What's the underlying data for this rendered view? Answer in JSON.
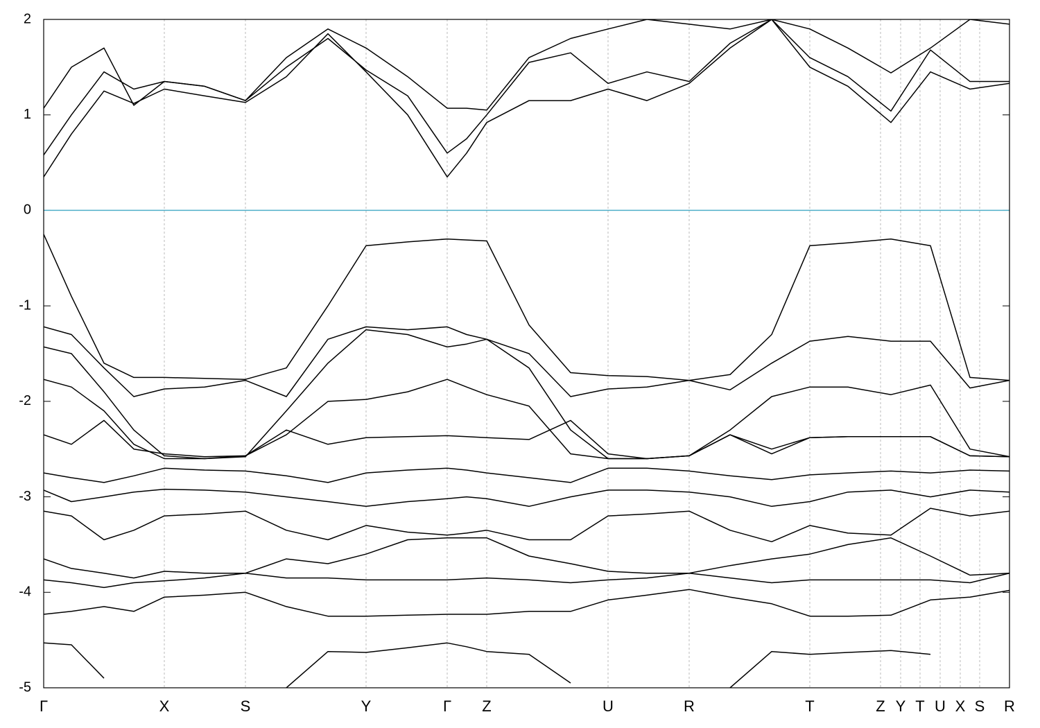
{
  "chart_data": {
    "type": "line",
    "x": [
      0,
      0.4,
      0.87,
      1.3,
      1.74,
      2.32,
      2.91,
      3.5,
      4.1,
      4.65,
      5.25,
      5.82,
      6.1,
      6.39,
      7.0,
      7.6,
      8.14,
      8.7,
      9.31,
      9.9,
      10.5,
      11.05,
      11.6,
      12.22,
      12.79,
      13.36,
      13.93
    ],
    "xlim": [
      0,
      13.93
    ],
    "xticks": [
      {
        "value": 0,
        "label": "Γ"
      },
      {
        "value": 1.74,
        "label": "X"
      },
      {
        "value": 2.91,
        "label": "S"
      },
      {
        "value": 4.65,
        "label": "Y"
      },
      {
        "value": 5.82,
        "label": "Γ"
      },
      {
        "value": 6.39,
        "label": "Z"
      },
      {
        "value": 8.14,
        "label": "U"
      },
      {
        "value": 9.31,
        "label": "R"
      },
      {
        "value": 11.05,
        "label": "T"
      },
      {
        "value": 12.07,
        "label": "Z"
      },
      {
        "value": 12.36,
        "label": "Y"
      },
      {
        "value": 12.64,
        "label": "T"
      },
      {
        "value": 12.93,
        "label": "U"
      },
      {
        "value": 13.22,
        "label": "X"
      },
      {
        "value": 13.5,
        "label": "S"
      },
      {
        "value": 13.93,
        "label": "R"
      }
    ],
    "ylim": [
      -5,
      2
    ],
    "yticks": [
      -5,
      -4,
      -3,
      -2,
      -1,
      0,
      1,
      2
    ],
    "grid": true,
    "reference_line": {
      "value": 0,
      "color": "#4eaec8"
    },
    "series": [
      {
        "color": "#000000",
        "values": [
          1.07,
          1.5,
          1.7,
          1.1,
          1.35,
          1.3,
          1.15,
          1.6,
          1.9,
          1.7,
          1.4,
          1.07,
          1.07,
          1.05,
          1.6,
          1.8,
          1.9,
          2.0,
          1.95,
          1.9,
          2.0,
          1.9,
          1.7,
          1.44,
          1.7,
          2.0,
          1.95
        ]
      },
      {
        "color": "#000000",
        "values": [
          0.58,
          1.0,
          1.45,
          1.27,
          1.35,
          1.3,
          1.15,
          1.5,
          1.8,
          1.47,
          1.2,
          0.6,
          0.75,
          1.0,
          1.55,
          1.65,
          1.33,
          1.45,
          1.35,
          1.75,
          2.0,
          1.6,
          1.4,
          1.04,
          1.68,
          1.35,
          1.35
        ]
      },
      {
        "color": "#000000",
        "values": [
          0.35,
          0.8,
          1.25,
          1.12,
          1.27,
          1.2,
          1.13,
          1.4,
          1.85,
          1.45,
          1.0,
          0.35,
          0.6,
          0.92,
          1.15,
          1.15,
          1.27,
          1.15,
          1.33,
          1.7,
          2.0,
          1.5,
          1.3,
          0.92,
          1.45,
          1.27,
          1.33
        ]
      },
      {
        "color": "#000000",
        "values": [
          -0.25,
          -0.9,
          -1.6,
          -1.75,
          -1.75,
          -1.76,
          -1.77,
          -1.65,
          -1.0,
          -0.37,
          -0.33,
          -0.3,
          -0.31,
          -0.32,
          -1.2,
          -1.7,
          -1.73,
          -1.74,
          -1.78,
          -1.72,
          -1.3,
          -0.37,
          -0.34,
          -0.3,
          -0.37,
          -1.75,
          -1.78
        ]
      },
      {
        "color": "#000000",
        "values": [
          -1.22,
          -1.3,
          -1.65,
          -1.95,
          -1.87,
          -1.85,
          -1.78,
          -1.95,
          -1.35,
          -1.22,
          -1.25,
          -1.22,
          -1.3,
          -1.35,
          -1.5,
          -1.95,
          -1.87,
          -1.85,
          -1.78,
          -1.88,
          -1.6,
          -1.37,
          -1.32,
          -1.37,
          -1.37,
          -1.86,
          -1.78
        ]
      },
      {
        "color": "#000000",
        "values": [
          -1.43,
          -1.5,
          -1.9,
          -2.3,
          -2.57,
          -2.6,
          -2.58,
          -2.1,
          -1.6,
          -1.25,
          -1.3,
          -1.43,
          -1.4,
          -1.35,
          -1.65,
          -2.3,
          -2.6,
          -2.6,
          -2.57,
          -2.3,
          -1.95,
          -1.85,
          -1.85,
          -1.93,
          -1.83,
          -2.5,
          -2.58
        ]
      },
      {
        "color": "#000000",
        "values": [
          -1.77,
          -1.85,
          -2.1,
          -2.45,
          -2.6,
          -2.6,
          -2.57,
          -2.35,
          -2.0,
          -1.98,
          -1.9,
          -1.77,
          -1.85,
          -1.93,
          -2.05,
          -2.55,
          -2.6,
          -2.6,
          -2.57,
          -2.35,
          -2.5,
          -2.38,
          -2.37,
          -2.37,
          -2.37,
          -2.57,
          -2.58
        ]
      },
      {
        "color": "#000000",
        "values": [
          -2.35,
          -2.45,
          -2.2,
          -2.5,
          -2.55,
          -2.58,
          -2.57,
          -2.3,
          -2.45,
          -2.38,
          -2.37,
          -2.36,
          -2.37,
          -2.38,
          -2.4,
          -2.2,
          -2.55,
          -2.6,
          -2.57,
          -2.35,
          -2.55,
          -2.38,
          -2.37,
          -2.37,
          -2.37,
          -2.57,
          -2.58
        ]
      },
      {
        "color": "#000000",
        "values": [
          -2.75,
          -2.8,
          -2.85,
          -2.78,
          -2.7,
          -2.72,
          -2.73,
          -2.78,
          -2.85,
          -2.75,
          -2.72,
          -2.7,
          -2.72,
          -2.75,
          -2.8,
          -2.85,
          -2.7,
          -2.7,
          -2.73,
          -2.78,
          -2.82,
          -2.77,
          -2.75,
          -2.73,
          -2.75,
          -2.72,
          -2.73
        ]
      },
      {
        "color": "#000000",
        "values": [
          -2.93,
          -3.05,
          -3.0,
          -2.95,
          -2.92,
          -2.93,
          -2.95,
          -3.0,
          -3.05,
          -3.1,
          -3.05,
          -3.02,
          -3.0,
          -3.02,
          -3.1,
          -3.0,
          -2.93,
          -2.93,
          -2.95,
          -3.0,
          -3.1,
          -3.05,
          -2.95,
          -2.93,
          -3.0,
          -2.93,
          -2.95
        ]
      },
      {
        "color": "#000000",
        "values": [
          -3.15,
          -3.2,
          -3.45,
          -3.35,
          -3.2,
          -3.18,
          -3.15,
          -3.35,
          -3.45,
          -3.3,
          -3.37,
          -3.4,
          -3.38,
          -3.35,
          -3.45,
          -3.45,
          -3.2,
          -3.18,
          -3.15,
          -3.35,
          -3.47,
          -3.3,
          -3.38,
          -3.4,
          -3.12,
          -3.2,
          -3.15
        ]
      },
      {
        "color": "#000000",
        "values": [
          -3.65,
          -3.75,
          -3.8,
          -3.85,
          -3.78,
          -3.8,
          -3.8,
          -3.65,
          -3.7,
          -3.6,
          -3.45,
          -3.43,
          -3.43,
          -3.43,
          -3.62,
          -3.7,
          -3.78,
          -3.8,
          -3.8,
          -3.72,
          -3.65,
          -3.6,
          -3.5,
          -3.43,
          -3.62,
          -3.82,
          -3.8
        ]
      },
      {
        "color": "#000000",
        "values": [
          -3.87,
          -3.9,
          -3.95,
          -3.9,
          -3.88,
          -3.85,
          -3.8,
          -3.85,
          -3.85,
          -3.87,
          -3.87,
          -3.87,
          -3.86,
          -3.85,
          -3.87,
          -3.9,
          -3.87,
          -3.85,
          -3.8,
          -3.85,
          -3.9,
          -3.87,
          -3.87,
          -3.87,
          -3.87,
          -3.9,
          -3.8
        ]
      },
      {
        "color": "#000000",
        "values": [
          -4.23,
          -4.2,
          -4.15,
          -4.2,
          -4.05,
          -4.03,
          -4.0,
          -4.15,
          -4.25,
          -4.25,
          -4.24,
          -4.23,
          -4.23,
          -4.23,
          -4.2,
          -4.2,
          -4.08,
          -4.03,
          -3.97,
          -4.05,
          -4.12,
          -4.25,
          -4.25,
          -4.24,
          -4.08,
          -4.05,
          -3.98
        ]
      },
      {
        "color": "#000000",
        "values": [
          -4.53,
          -4.55,
          -4.9,
          null,
          null,
          null,
          null,
          -5.0,
          -4.62,
          -4.63,
          -4.58,
          -4.53,
          -4.57,
          -4.62,
          -4.65,
          -4.95,
          null,
          null,
          null,
          -5.0,
          -4.62,
          -4.65,
          -4.63,
          -4.61,
          -4.65,
          null,
          null
        ]
      }
    ]
  }
}
